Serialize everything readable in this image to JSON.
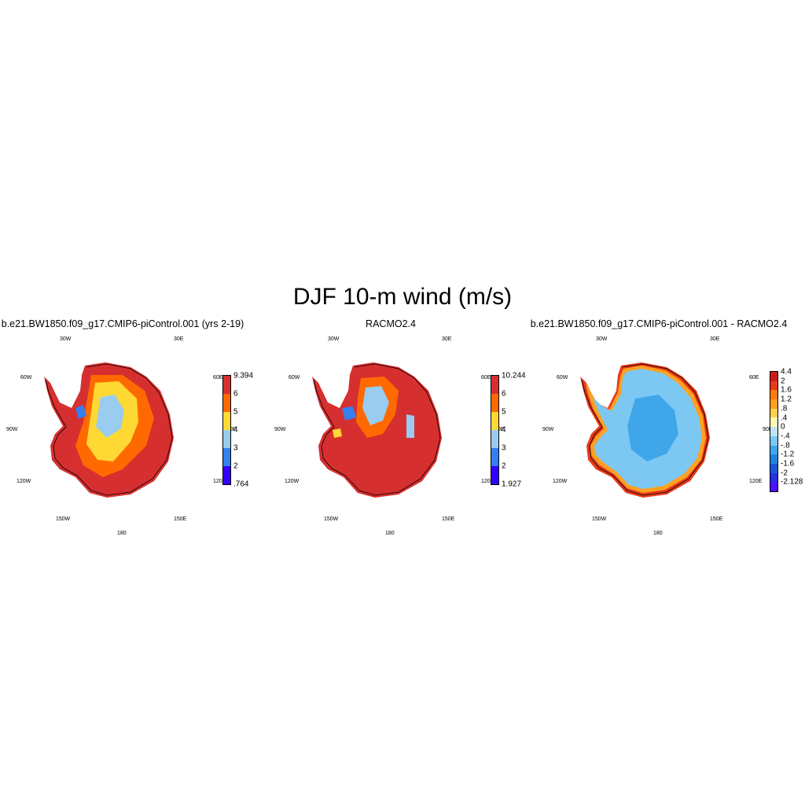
{
  "figure": {
    "title": "DJF 10-m wind (m/s)"
  },
  "lon_labels": {
    "w30": "30W",
    "e30": "30E",
    "w60": "60W",
    "e60": "60E",
    "w90": "90W",
    "e90": "90E",
    "w120": "120W",
    "e120": "120E",
    "w150": "150W",
    "e150": "150E",
    "s180": "180"
  },
  "panels": [
    {
      "title": "b.e21.BW1850.f09_g17.CMIP6-piControl.001 (yrs 2-19)",
      "colorbar": {
        "labels": [
          "9.394",
          "6",
          "5",
          "4",
          "3",
          "2",
          ".764"
        ],
        "colors": [
          "#d62f2f",
          "#ff6a00",
          "#ffd933",
          "#99ccee",
          "#3380f0",
          "#3300ff"
        ]
      }
    },
    {
      "title": "RACMO2.4",
      "colorbar": {
        "labels": [
          "10.244",
          "6",
          "5",
          "4",
          "3",
          "2",
          "1.927"
        ],
        "colors": [
          "#d62f2f",
          "#ff6a00",
          "#ffd933",
          "#99ccee",
          "#3380f0",
          "#3300ff"
        ]
      }
    },
    {
      "title": "b.e21.BW1850.f09_g17.CMIP6-piControl.001 - RACMO2.4",
      "colorbar": {
        "labels": [
          "4.4",
          "2",
          "1.6",
          "1.2",
          ".8",
          ".4",
          "0",
          "-.4",
          "-.8",
          "-1.2",
          "-1.6",
          "-2",
          "-2.128"
        ],
        "colors": [
          "#cc1a1a",
          "#e83a1a",
          "#ff7a10",
          "#ffa020",
          "#ffd050",
          "#fff8b0",
          "#bfe4f6",
          "#7cc8f2",
          "#3fa6ea",
          "#1f84e0",
          "#1a56d8",
          "#2530e0",
          "#4a10ff"
        ]
      }
    }
  ]
}
